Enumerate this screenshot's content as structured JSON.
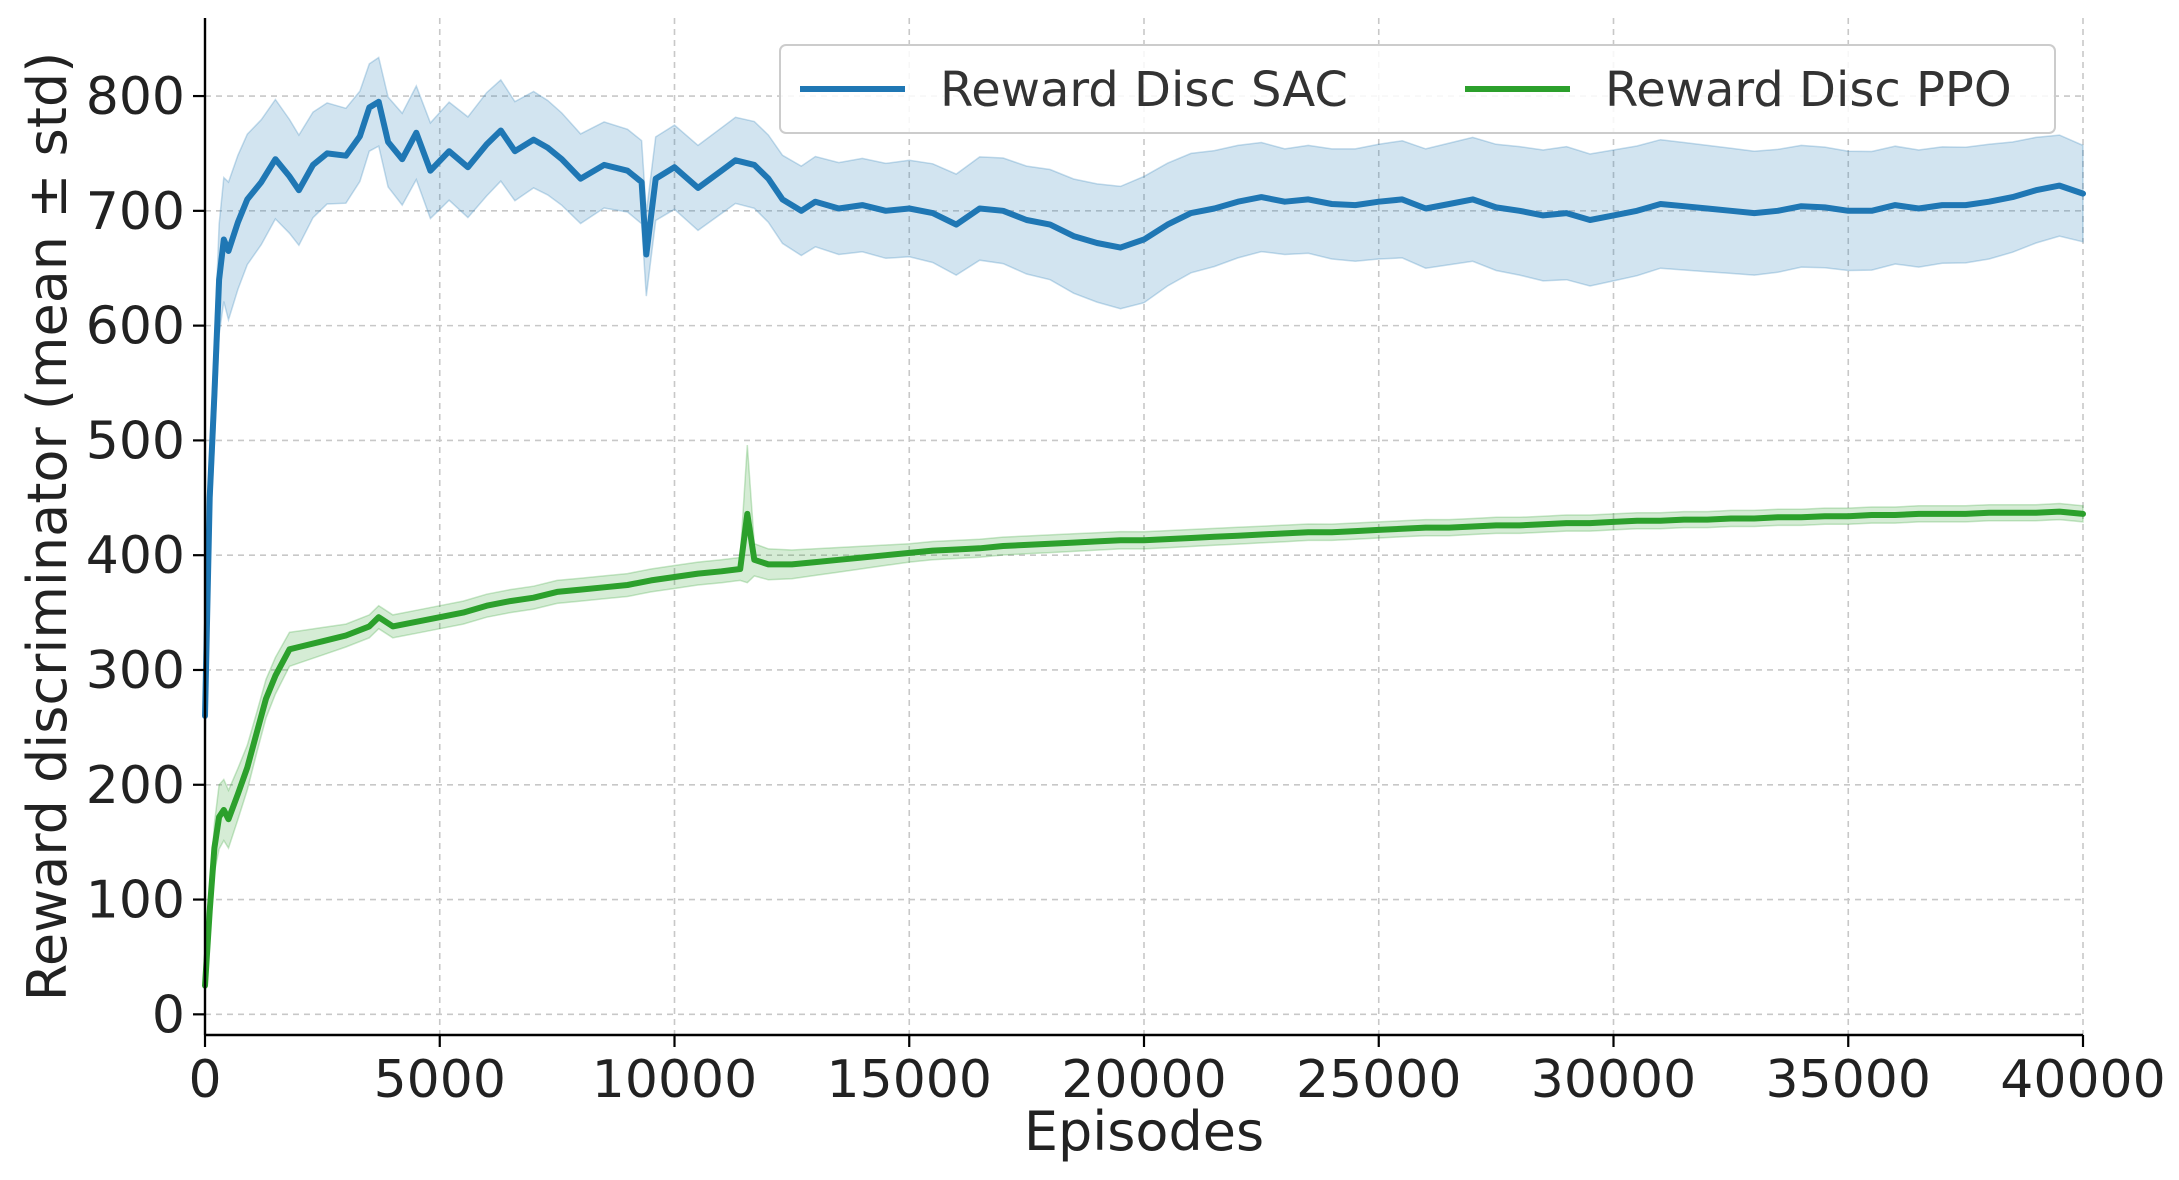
{
  "chart_data": {
    "type": "line",
    "title": "",
    "xlabel": "Episodes",
    "ylabel": "Reward discriminator (mean ± std)",
    "xlim": [
      0,
      40000
    ],
    "ylim": [
      -18,
      868
    ],
    "xticks": [
      0,
      5000,
      10000,
      15000,
      20000,
      25000,
      30000,
      35000,
      40000
    ],
    "yticks": [
      0,
      100,
      200,
      300,
      400,
      500,
      600,
      700,
      800
    ],
    "grid": true,
    "legend_position": "top-right",
    "shaded_band": "mean ± std",
    "colors": {
      "sac": "#1f77b4",
      "ppo": "#2ca02c"
    },
    "series": [
      {
        "name": "Reward Disc SAC",
        "color": "#1f77b4",
        "points": [
          [
            0,
            260
          ],
          [
            100,
            450
          ],
          [
            200,
            540
          ],
          [
            300,
            640
          ],
          [
            400,
            675
          ],
          [
            500,
            665
          ],
          [
            700,
            690
          ],
          [
            900,
            710
          ],
          [
            1200,
            725
          ],
          [
            1500,
            745
          ],
          [
            1800,
            730
          ],
          [
            2000,
            718
          ],
          [
            2300,
            740
          ],
          [
            2600,
            750
          ],
          [
            3000,
            748
          ],
          [
            3300,
            765
          ],
          [
            3500,
            790
          ],
          [
            3700,
            795
          ],
          [
            3900,
            760
          ],
          [
            4200,
            745
          ],
          [
            4500,
            768
          ],
          [
            4800,
            735
          ],
          [
            5200,
            752
          ],
          [
            5600,
            738
          ],
          [
            6000,
            758
          ],
          [
            6300,
            770
          ],
          [
            6600,
            752
          ],
          [
            7000,
            762
          ],
          [
            7300,
            755
          ],
          [
            7600,
            745
          ],
          [
            8000,
            728
          ],
          [
            8500,
            740
          ],
          [
            9000,
            735
          ],
          [
            9300,
            725
          ],
          [
            9400,
            662
          ],
          [
            9600,
            728
          ],
          [
            10000,
            738
          ],
          [
            10500,
            720
          ],
          [
            11000,
            735
          ],
          [
            11300,
            744
          ],
          [
            11700,
            740
          ],
          [
            12000,
            728
          ],
          [
            12300,
            710
          ],
          [
            12700,
            700
          ],
          [
            13000,
            708
          ],
          [
            13500,
            702
          ],
          [
            14000,
            705
          ],
          [
            14500,
            700
          ],
          [
            15000,
            702
          ],
          [
            15500,
            698
          ],
          [
            16000,
            688
          ],
          [
            16500,
            702
          ],
          [
            17000,
            700
          ],
          [
            17500,
            692
          ],
          [
            18000,
            688
          ],
          [
            18500,
            678
          ],
          [
            19000,
            672
          ],
          [
            19500,
            668
          ],
          [
            20000,
            675
          ],
          [
            20500,
            688
          ],
          [
            21000,
            698
          ],
          [
            21500,
            702
          ],
          [
            22000,
            708
          ],
          [
            22500,
            712
          ],
          [
            23000,
            708
          ],
          [
            23500,
            710
          ],
          [
            24000,
            706
          ],
          [
            24500,
            705
          ],
          [
            25000,
            708
          ],
          [
            25500,
            710
          ],
          [
            26000,
            702
          ],
          [
            26500,
            706
          ],
          [
            27000,
            710
          ],
          [
            27500,
            703
          ],
          [
            28000,
            700
          ],
          [
            28500,
            696
          ],
          [
            29000,
            698
          ],
          [
            29500,
            692
          ],
          [
            30000,
            696
          ],
          [
            30500,
            700
          ],
          [
            31000,
            706
          ],
          [
            31500,
            704
          ],
          [
            32000,
            702
          ],
          [
            32500,
            700
          ],
          [
            33000,
            698
          ],
          [
            33500,
            700
          ],
          [
            34000,
            704
          ],
          [
            34500,
            703
          ],
          [
            35000,
            700
          ],
          [
            35500,
            700
          ],
          [
            36000,
            705
          ],
          [
            36500,
            702
          ],
          [
            37000,
            705
          ],
          [
            37500,
            705
          ],
          [
            38000,
            708
          ],
          [
            38500,
            712
          ],
          [
            39000,
            718
          ],
          [
            39500,
            722
          ],
          [
            40000,
            715
          ]
        ],
        "std": [
          [
            0,
            30
          ],
          [
            500,
            60
          ],
          [
            2000,
            48
          ],
          [
            3500,
            38
          ],
          [
            6000,
            45
          ],
          [
            9000,
            36
          ],
          [
            12000,
            38
          ],
          [
            15000,
            42
          ],
          [
            18000,
            48
          ],
          [
            20000,
            55
          ],
          [
            23000,
            46
          ],
          [
            26000,
            52
          ],
          [
            29000,
            58
          ],
          [
            32000,
            55
          ],
          [
            35000,
            52
          ],
          [
            38000,
            50
          ],
          [
            40000,
            42
          ]
        ]
      },
      {
        "name": "Reward Disc PPO",
        "color": "#2ca02c",
        "points": [
          [
            0,
            25
          ],
          [
            100,
            90
          ],
          [
            200,
            145
          ],
          [
            300,
            172
          ],
          [
            400,
            178
          ],
          [
            500,
            170
          ],
          [
            700,
            192
          ],
          [
            900,
            215
          ],
          [
            1100,
            245
          ],
          [
            1300,
            275
          ],
          [
            1500,
            295
          ],
          [
            1800,
            318
          ],
          [
            2000,
            320
          ],
          [
            2500,
            325
          ],
          [
            3000,
            330
          ],
          [
            3500,
            338
          ],
          [
            3700,
            346
          ],
          [
            4000,
            338
          ],
          [
            4500,
            342
          ],
          [
            5000,
            346
          ],
          [
            5500,
            350
          ],
          [
            6000,
            356
          ],
          [
            6500,
            360
          ],
          [
            7000,
            363
          ],
          [
            7500,
            368
          ],
          [
            8000,
            370
          ],
          [
            8500,
            372
          ],
          [
            9000,
            374
          ],
          [
            9500,
            378
          ],
          [
            10000,
            381
          ],
          [
            10500,
            384
          ],
          [
            11000,
            386
          ],
          [
            11400,
            388
          ],
          [
            11550,
            436
          ],
          [
            11700,
            396
          ],
          [
            12000,
            392
          ],
          [
            12500,
            392
          ],
          [
            13000,
            394
          ],
          [
            13500,
            396
          ],
          [
            14000,
            398
          ],
          [
            14500,
            400
          ],
          [
            15000,
            402
          ],
          [
            15500,
            404
          ],
          [
            16000,
            405
          ],
          [
            16500,
            406
          ],
          [
            17000,
            408
          ],
          [
            17500,
            409
          ],
          [
            18000,
            410
          ],
          [
            18500,
            411
          ],
          [
            19000,
            412
          ],
          [
            19500,
            413
          ],
          [
            20000,
            413
          ],
          [
            20500,
            414
          ],
          [
            21000,
            415
          ],
          [
            21500,
            416
          ],
          [
            22000,
            417
          ],
          [
            22500,
            418
          ],
          [
            23000,
            419
          ],
          [
            23500,
            420
          ],
          [
            24000,
            420
          ],
          [
            24500,
            421
          ],
          [
            25000,
            422
          ],
          [
            25500,
            423
          ],
          [
            26000,
            424
          ],
          [
            26500,
            424
          ],
          [
            27000,
            425
          ],
          [
            27500,
            426
          ],
          [
            28000,
            426
          ],
          [
            28500,
            427
          ],
          [
            29000,
            428
          ],
          [
            29500,
            428
          ],
          [
            30000,
            429
          ],
          [
            30500,
            430
          ],
          [
            31000,
            430
          ],
          [
            31500,
            431
          ],
          [
            32000,
            431
          ],
          [
            32500,
            432
          ],
          [
            33000,
            432
          ],
          [
            33500,
            433
          ],
          [
            34000,
            433
          ],
          [
            34500,
            434
          ],
          [
            35000,
            434
          ],
          [
            35500,
            435
          ],
          [
            36000,
            435
          ],
          [
            36500,
            436
          ],
          [
            37000,
            436
          ],
          [
            37500,
            436
          ],
          [
            38000,
            437
          ],
          [
            38500,
            437
          ],
          [
            39000,
            437
          ],
          [
            39500,
            438
          ],
          [
            40000,
            436
          ]
        ],
        "std": [
          [
            0,
            8
          ],
          [
            300,
            28
          ],
          [
            1000,
            18
          ],
          [
            3000,
            10
          ],
          [
            11400,
            10
          ],
          [
            11550,
            60
          ],
          [
            11700,
            14
          ],
          [
            15000,
            8
          ],
          [
            25000,
            7
          ],
          [
            40000,
            7
          ]
        ]
      }
    ]
  }
}
